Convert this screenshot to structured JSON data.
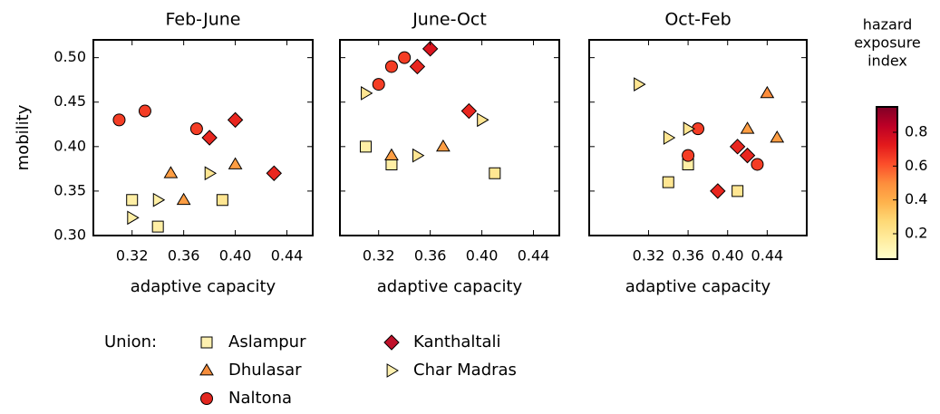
{
  "chart_data": [
    {
      "type": "scatter",
      "title": "Feb-June",
      "x_label": "adaptive capacity",
      "y_label": "mobility",
      "xlim": [
        0.29,
        0.46
      ],
      "xticks": [
        0.32,
        0.36,
        {
          "value": 0.4,
          "label": "0.40"
        },
        0.44
      ],
      "ylim": [
        0.3,
        0.52
      ],
      "yticks": [
        {
          "value": 0.3,
          "label": "0.30"
        },
        0.35,
        {
          "value": 0.4,
          "label": "0.40"
        },
        0.45,
        {
          "value": 0.5,
          "label": "0.50"
        }
      ],
      "series": [
        {
          "name": "Aslampur",
          "marker": "square",
          "color": "#fdf0b0",
          "x": [
            0.32,
            0.34,
            0.39
          ],
          "values": [
            0.34,
            0.31,
            0.34
          ],
          "hazard": [
            0.15,
            0.15,
            0.2
          ]
        },
        {
          "name": "Dhulasar",
          "marker": "triangle",
          "color": "#f58d3c",
          "x": [
            0.35,
            0.36,
            0.4
          ],
          "values": [
            0.37,
            0.34,
            0.38
          ],
          "hazard": [
            0.45,
            0.45,
            0.45
          ]
        },
        {
          "name": "Naltona",
          "marker": "circle",
          "color": "#e3261f",
          "x": [
            0.31,
            0.33,
            0.37
          ],
          "values": [
            0.43,
            0.44,
            0.42
          ],
          "hazard": [
            0.65,
            0.65,
            0.65
          ]
        },
        {
          "name": "Kanthaltali",
          "marker": "diamond",
          "color": "#c0112a",
          "x": [
            0.38,
            0.4,
            0.43
          ],
          "values": [
            0.41,
            0.43,
            0.37
          ],
          "hazard": [
            0.7,
            0.7,
            0.7
          ]
        },
        {
          "name": "Char Madras",
          "marker": "triangle-right",
          "color": "#fdf0b0",
          "x": [
            0.32,
            0.34,
            0.38
          ],
          "values": [
            0.32,
            0.34,
            0.37
          ],
          "hazard": [
            0.15,
            0.15,
            0.2
          ]
        }
      ]
    },
    {
      "type": "scatter",
      "title": "June-Oct",
      "x_label": "adaptive capacity",
      "xlim": [
        0.29,
        0.46
      ],
      "xticks": [
        0.32,
        0.36,
        {
          "value": 0.4,
          "label": "0.40"
        },
        0.44
      ],
      "ylim": [
        0.3,
        0.52
      ],
      "series": [
        {
          "marker": "square",
          "x": [
            0.31,
            0.33,
            0.41
          ],
          "values": [
            0.4,
            0.38,
            0.37
          ],
          "hazard": [
            0.15,
            0.15,
            0.2
          ]
        },
        {
          "marker": "triangle",
          "x": [
            0.33,
            0.37
          ],
          "values": [
            0.39,
            0.4
          ],
          "hazard": [
            0.45,
            0.45
          ]
        },
        {
          "marker": "circle",
          "x": [
            0.32,
            0.33,
            0.34
          ],
          "values": [
            0.47,
            0.49,
            0.5
          ],
          "hazard": [
            0.65,
            0.65,
            0.65
          ]
        },
        {
          "marker": "diamond",
          "x": [
            0.35,
            0.36,
            0.39
          ],
          "values": [
            0.49,
            0.51,
            0.44
          ],
          "hazard": [
            0.7,
            0.75,
            0.7
          ]
        },
        {
          "marker": "triangle-right",
          "x": [
            0.31,
            0.35,
            0.4
          ],
          "values": [
            0.46,
            0.39,
            0.43
          ],
          "hazard": [
            0.2,
            0.2,
            0.2
          ]
        }
      ]
    },
    {
      "type": "scatter",
      "title": "Oct-Feb",
      "x_label": "adaptive capacity",
      "xlim": [
        0.26,
        0.48
      ],
      "xticks": [
        0.32,
        0.36,
        {
          "value": 0.4,
          "label": "0.40"
        },
        0.44
      ],
      "ylim": [
        0.3,
        0.52
      ],
      "series": [
        {
          "marker": "square",
          "x": [
            0.34,
            0.36,
            0.41
          ],
          "values": [
            0.36,
            0.38,
            0.35
          ],
          "hazard": [
            0.2,
            0.15,
            0.2
          ]
        },
        {
          "marker": "triangle",
          "x": [
            0.42,
            0.44,
            0.45
          ],
          "values": [
            0.42,
            0.46,
            0.41
          ],
          "hazard": [
            0.45,
            0.5,
            0.45
          ]
        },
        {
          "marker": "circle",
          "x": [
            0.36,
            0.37,
            0.43
          ],
          "values": [
            0.39,
            0.42,
            0.38
          ],
          "hazard": [
            0.65,
            0.65,
            0.65
          ]
        },
        {
          "marker": "diamond",
          "x": [
            0.39,
            0.41,
            0.42
          ],
          "values": [
            0.35,
            0.4,
            0.39
          ],
          "hazard": [
            0.7,
            0.7,
            0.7
          ]
        },
        {
          "marker": "triangle-right",
          "x": [
            0.31,
            0.34,
            0.36
          ],
          "values": [
            0.47,
            0.41,
            0.42
          ],
          "hazard": [
            0.2,
            0.2,
            0.2
          ]
        }
      ]
    }
  ],
  "legend": {
    "title": "Union:"
  },
  "colorbar": {
    "label": [
      "hazard",
      "exposure",
      "index"
    ],
    "lim": [
      0.05,
      0.95
    ],
    "ticks": [
      0.2,
      0.4,
      0.6,
      0.8
    ],
    "colormap": "YlOrRd"
  }
}
